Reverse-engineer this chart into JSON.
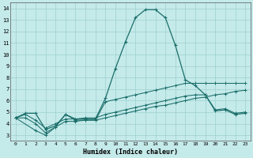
{
  "xlabel": "Humidex (Indice chaleur)",
  "bg_color": "#c5eaea",
  "line_color": "#1a6e6a",
  "grid_color": "#9dcfcf",
  "xlim": [
    -0.5,
    23.5
  ],
  "ylim": [
    2.5,
    14.5
  ],
  "xticks": [
    0,
    1,
    2,
    3,
    4,
    5,
    6,
    7,
    8,
    9,
    10,
    11,
    12,
    13,
    14,
    15,
    16,
    17,
    18,
    19,
    20,
    21,
    22,
    23
  ],
  "yticks": [
    3,
    4,
    5,
    6,
    7,
    8,
    9,
    10,
    11,
    12,
    13,
    14
  ],
  "line1_x": [
    0,
    1,
    2,
    3,
    4,
    5,
    6,
    7,
    8,
    9,
    10,
    11,
    12,
    13,
    14,
    15,
    16,
    17,
    18,
    19,
    20,
    21,
    22,
    23
  ],
  "line1_y": [
    4.5,
    4.9,
    4.9,
    3.5,
    3.8,
    4.8,
    4.4,
    4.4,
    4.4,
    6.2,
    8.8,
    11.1,
    13.2,
    13.9,
    13.9,
    13.2,
    10.8,
    7.8,
    7.3,
    6.5,
    5.1,
    5.2,
    4.8,
    4.9
  ],
  "line2_x": [
    0,
    2,
    3,
    4,
    5,
    6,
    7,
    8,
    9,
    10,
    11,
    12,
    13,
    14,
    15,
    16,
    17,
    18,
    19,
    20,
    21,
    22,
    23
  ],
  "line2_y": [
    4.5,
    3.4,
    3.0,
    3.7,
    4.8,
    4.3,
    4.3,
    4.3,
    5.9,
    6.1,
    6.3,
    6.5,
    6.7,
    6.9,
    7.1,
    7.3,
    7.5,
    7.5,
    7.5,
    7.5,
    7.5,
    7.5,
    7.5
  ],
  "line3_x": [
    0,
    1,
    2,
    3,
    4,
    5,
    6,
    7,
    8,
    9,
    10,
    11,
    12,
    13,
    14,
    15,
    16,
    17,
    18,
    19,
    20,
    21,
    22,
    23
  ],
  "line3_y": [
    4.5,
    4.8,
    4.3,
    3.6,
    4.0,
    4.4,
    4.4,
    4.5,
    4.5,
    4.8,
    5.0,
    5.2,
    5.4,
    5.6,
    5.8,
    6.0,
    6.2,
    6.4,
    6.5,
    6.5,
    5.2,
    5.3,
    4.9,
    5.0
  ],
  "line4_x": [
    0,
    1,
    2,
    3,
    4,
    5,
    6,
    7,
    8,
    9,
    10,
    11,
    12,
    13,
    14,
    15,
    16,
    17,
    18,
    19,
    20,
    21,
    22,
    23
  ],
  "line4_y": [
    4.5,
    4.5,
    4.0,
    3.2,
    3.7,
    4.2,
    4.2,
    4.3,
    4.3,
    4.5,
    4.7,
    4.9,
    5.1,
    5.3,
    5.5,
    5.6,
    5.8,
    6.0,
    6.2,
    6.3,
    6.5,
    6.6,
    6.8,
    6.9
  ]
}
